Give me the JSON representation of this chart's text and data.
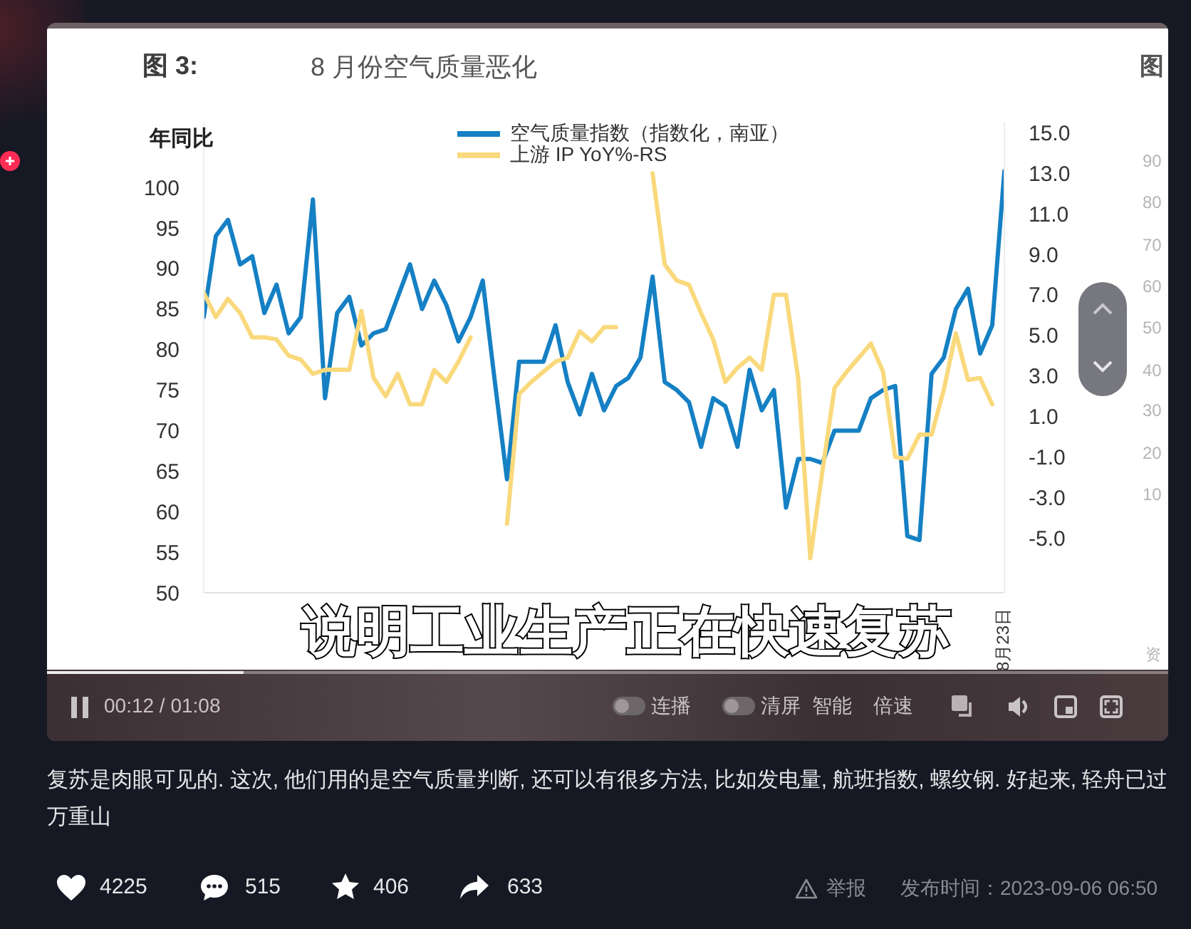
{
  "chart_data": {
    "type": "line",
    "title": "8 月份空气质量恶化",
    "ylabel": "年同比",
    "categories": [
      null,
      null,
      null,
      null,
      null,
      null,
      null,
      null,
      null,
      null,
      null,
      null,
      null,
      null,
      null,
      null,
      null,
      null,
      null,
      null,
      null,
      null,
      null,
      null,
      null,
      null,
      null,
      null,
      null,
      null,
      null,
      null,
      null,
      null,
      null,
      null,
      null,
      null,
      null,
      null,
      null,
      null,
      null,
      null,
      null,
      null,
      null,
      null,
      null,
      null,
      null,
      null,
      null,
      null,
      null,
      null,
      null,
      null,
      null,
      null,
      null,
      null,
      null,
      null,
      null,
      null,
      "8月23日"
    ],
    "series": [
      {
        "name": "空气质量指数（指数化，南亚）",
        "color": "#1580c4",
        "values": [
          84,
          94,
          96,
          90.5,
          91.5,
          84.5,
          88,
          82,
          84,
          98.5,
          74,
          84.5,
          86.5,
          80.5,
          82,
          82.5,
          86.5,
          90.5,
          85,
          88.5,
          85.5,
          81,
          84,
          88.5,
          76,
          64,
          78.5,
          78.5,
          78.5,
          83,
          76,
          72,
          77,
          72.5,
          75.5,
          76.5,
          79,
          89,
          76,
          75,
          73.5,
          68,
          74,
          73,
          68,
          77.5,
          72.5,
          75,
          60.5,
          66.5,
          66.5,
          66,
          70,
          70,
          70,
          74,
          75,
          75.5,
          57,
          56.5,
          77,
          79,
          85,
          87.5,
          79.5,
          83,
          102
        ]
      },
      {
        "name": "上游 IP YoY%-RS",
        "color": "#f9d97c",
        "axis": "y2",
        "values": [
          7.1,
          5.9,
          6.8,
          6.1,
          4.9,
          4.9,
          4.8,
          4,
          3.8,
          3.1,
          3.3,
          3.3,
          3.3,
          6.2,
          2.9,
          2,
          3.1,
          1.6,
          1.6,
          3.3,
          2.7,
          3.7,
          4.9,
          null,
          null,
          -4.3,
          2.1,
          2.7,
          3.2,
          3.7,
          3.9,
          5.2,
          4.7,
          5.4,
          5.4,
          null,
          null,
          13,
          8.5,
          7.7,
          7.5,
          6.1,
          4.8,
          2.7,
          3.4,
          3.9,
          3.3,
          7,
          7,
          2.9,
          -6,
          -1.7,
          2.4,
          3.2,
          3.9,
          4.6,
          3.2,
          -1,
          -1.1,
          0.1,
          0.1,
          2.3,
          5.1,
          2.8,
          2.9,
          1.6,
          null
        ]
      }
    ],
    "ylim": [
      50,
      108
    ],
    "yticks": [
      50,
      55,
      60,
      65,
      70,
      75,
      80,
      85,
      90,
      95,
      100
    ],
    "y2lim": [
      -7.7,
      15.5
    ],
    "y2ticks": [
      {
        "value": -5,
        "label": "-5.0"
      },
      {
        "value": -3,
        "label": "-3.0"
      },
      {
        "value": -1,
        "label": "-1.0"
      },
      {
        "value": 1,
        "label": "1.0"
      },
      {
        "value": 3,
        "label": "3.0"
      },
      {
        "value": 5,
        "label": "5.0"
      },
      {
        "value": 7,
        "label": "7.0"
      },
      {
        "value": 9,
        "label": "9.0"
      },
      {
        "value": 11,
        "label": "11.0"
      },
      {
        "value": 13,
        "label": "13.0"
      },
      {
        "value": 15,
        "label": "15.0"
      }
    ],
    "legend": "top",
    "annotations": [
      "图 3:",
      "说明工业生产正在快速复苏",
      "00:12 / 01:08",
      "连播",
      "清屏",
      "智能",
      "倍速",
      "复苏是肉眼可见的. 这次, 他们用的是空气质量判断, 还可以有很多方法, 比如发电量, 航班指数, 螺纹钢. 好起来, 轻舟已过万重山",
      "4225",
      "515",
      "406",
      "633",
      "举报",
      "发布时间：2023-09-06 06:50",
      "图",
      "90",
      "80",
      "70",
      "60",
      "50",
      "40",
      "30",
      "20",
      "10",
      "资"
    ]
  }
}
